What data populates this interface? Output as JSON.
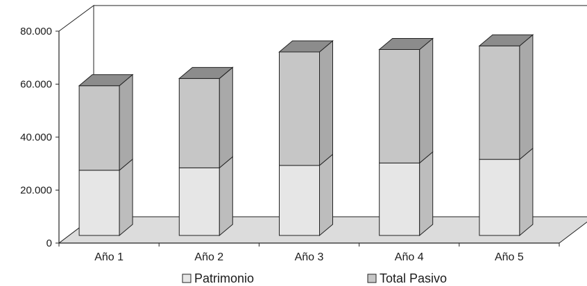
{
  "chart_data": {
    "type": "bar",
    "stacked": true,
    "three_d": true,
    "categories": [
      "Año 1",
      "Año 2",
      "Año 3",
      "Año 4",
      "Año 5"
    ],
    "series": [
      {
        "name": "Patrimonio",
        "values": [
          27000,
          28000,
          29000,
          30000,
          31500
        ]
      },
      {
        "name": "Total Pasivo",
        "values": [
          35000,
          37000,
          47000,
          47000,
          47000
        ]
      }
    ],
    "y_ticks": [
      "0",
      "20.000",
      "40.000",
      "60.000",
      "80.000"
    ],
    "ylim": [
      0,
      80000
    ],
    "grid": false,
    "legend_position": "bottom",
    "colors": {
      "Patrimonio": "#e6e6e6",
      "Total Pasivo": "#c6c6c6",
      "floor": "#dcdcdc",
      "back_wall": "#ffffff"
    }
  }
}
